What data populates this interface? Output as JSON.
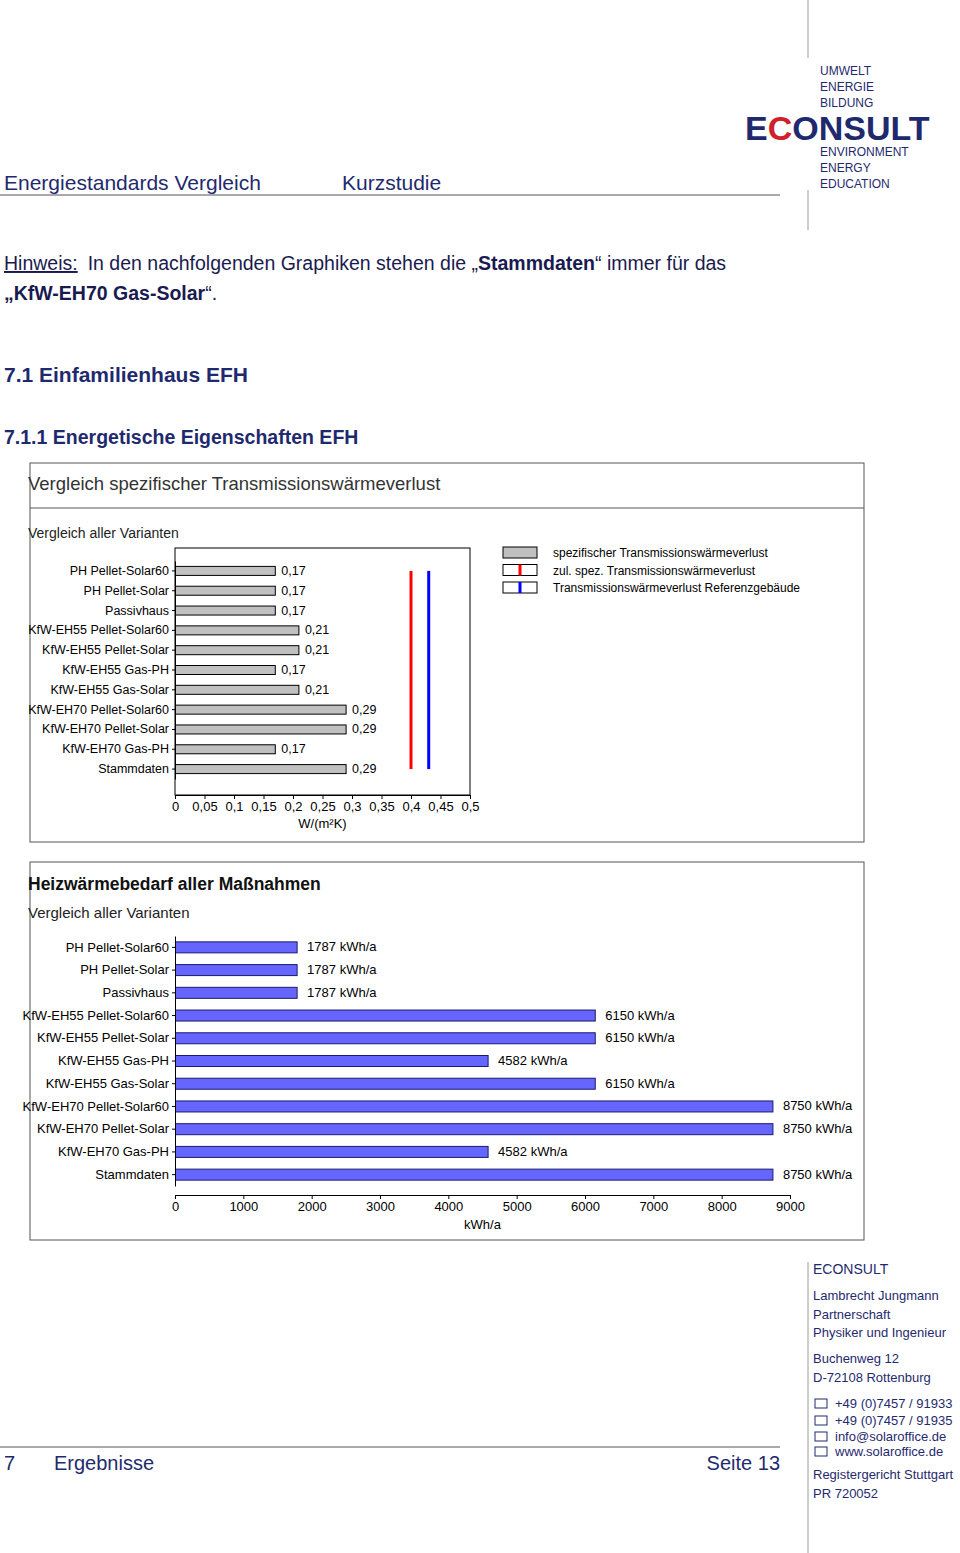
{
  "header": {
    "left": "Energiestandards Vergleich",
    "right": "Kurzstudie"
  },
  "logo": {
    "top": [
      "UMWELT",
      "ENERGIE",
      "BILDUNG"
    ],
    "name": "ECONSULT",
    "bottom": [
      "ENVIRONMENT",
      "ENERGY",
      "EDUCATION"
    ]
  },
  "note": {
    "label": "Hinweis:",
    "parts": [
      "In den nachfolgenden Graphiken stehen die „",
      "Stammdaten",
      "“ immer für das",
      "„KfW-EH70 Gas-Solar",
      "“."
    ]
  },
  "headings": [
    "7.1 Einfamilienhaus EFH",
    "7.1.1 Energetische Eigenschaften EFH"
  ],
  "chart_data": [
    {
      "type": "bar",
      "orientation": "horizontal",
      "title": "Vergleich spezifischer Transmissionswärmeverlust",
      "subtitle": "Vergleich aller Varianten",
      "xlabel": "W/(m²K)",
      "categories": [
        "PH Pellet-Solar60",
        "PH Pellet-Solar",
        "Passivhaus",
        "KfW-EH55 Pellet-Solar60",
        "KfW-EH55 Pellet-Solar",
        "KfW-EH55 Gas-PH",
        "KfW-EH55 Gas-Solar",
        "KfW-EH70 Pellet-Solar60",
        "KfW-EH70 Pellet-Solar",
        "KfW-EH70 Gas-PH",
        "Stammdaten"
      ],
      "series": [
        {
          "name": "spezifischer Transmissionswärmeverlust",
          "color": "#c0c0c0",
          "values": [
            0.17,
            0.17,
            0.17,
            0.21,
            0.21,
            0.17,
            0.21,
            0.29,
            0.29,
            0.17,
            0.29
          ],
          "value_labels": [
            "0,17",
            "0,17",
            "0,17",
            "0,21",
            "0,21",
            "0,17",
            "0,21",
            "0,29",
            "0,29",
            "0,17",
            "0,29"
          ]
        },
        {
          "name": "zul. spez. Transmissionswärmeverlust",
          "color": "#ff0000",
          "type": "line",
          "values": [
            0.4,
            0.4,
            0.4,
            0.4,
            0.4,
            0.4,
            0.4,
            0.4,
            0.4,
            0.4,
            0.4
          ]
        },
        {
          "name": "Transmissionswärmeverlust Referenzgebäude",
          "color": "#0000ff",
          "type": "line",
          "values": [
            0.43,
            0.43,
            0.43,
            0.43,
            0.43,
            0.43,
            0.43,
            0.43,
            0.43,
            0.43,
            0.43
          ]
        }
      ],
      "xlim": [
        0,
        0.5
      ],
      "xticks": [
        0,
        {
          "value": 0.05,
          "label": "0,05"
        },
        {
          "value": 0.1,
          "label": "0,1"
        },
        {
          "value": 0.15,
          "label": "0,15"
        },
        {
          "value": 0.2,
          "label": "0,2"
        },
        {
          "value": 0.25,
          "label": "0,25"
        },
        {
          "value": 0.3,
          "label": "0,3"
        },
        {
          "value": 0.35,
          "label": "0,35"
        },
        {
          "value": 0.4,
          "label": "0,4"
        },
        {
          "value": 0.45,
          "label": "0,45"
        },
        {
          "value": 0.5,
          "label": "0,5"
        }
      ],
      "data_labels": true,
      "legend": "top-right"
    },
    {
      "type": "bar",
      "orientation": "horizontal",
      "title": "Heizwärmebedarf aller Maßnahmen",
      "subtitle": "Vergleich aller Varianten",
      "xlabel": "kWh/a",
      "categories": [
        "PH Pellet-Solar60",
        "PH Pellet-Solar",
        "Passivhaus",
        "KfW-EH55 Pellet-Solar60",
        "KfW-EH55 Pellet-Solar",
        "KfW-EH55 Gas-PH",
        "KfW-EH55 Gas-Solar",
        "KfW-EH70 Pellet-Solar60",
        "KfW-EH70 Pellet-Solar",
        "KfW-EH70 Gas-PH",
        "Stammdaten"
      ],
      "values": [
        1787,
        1787,
        1787,
        6150,
        6150,
        4582,
        6150,
        8750,
        8750,
        4582,
        8750
      ],
      "value_labels": [
        "1787 kWh/a",
        "1787 kWh/a",
        "1787 kWh/a",
        "6150 kWh/a",
        "6150 kWh/a",
        "4582 kWh/a",
        "6150 kWh/a",
        "8750 kWh/a",
        "8750 kWh/a",
        "4582 kWh/a",
        "8750 kWh/a"
      ],
      "color": "#6666ff",
      "xlim": [
        0,
        9000
      ],
      "xticks": [
        0,
        1000,
        2000,
        3000,
        4000,
        5000,
        6000,
        7000,
        8000,
        9000
      ],
      "data_labels": true
    }
  ],
  "footer": {
    "section": "7",
    "section_title": "Ergebnisse",
    "page": "Seite 13",
    "company": "ECONSULT",
    "partners": [
      "Lambrecht Jungmann",
      "Partnerschaft",
      "Physiker und Ingenieur"
    ],
    "address": [
      "Buchenweg 12",
      "D-72108 Rottenburg"
    ],
    "phone": "+49 (0)7457 / 91933",
    "fax": "+49 (0)7457 / 91935",
    "email": "info@solaroffice.de",
    "web": "www.solaroffice.de",
    "register": [
      "Registergericht Stuttgart",
      "PR 720052"
    ]
  }
}
